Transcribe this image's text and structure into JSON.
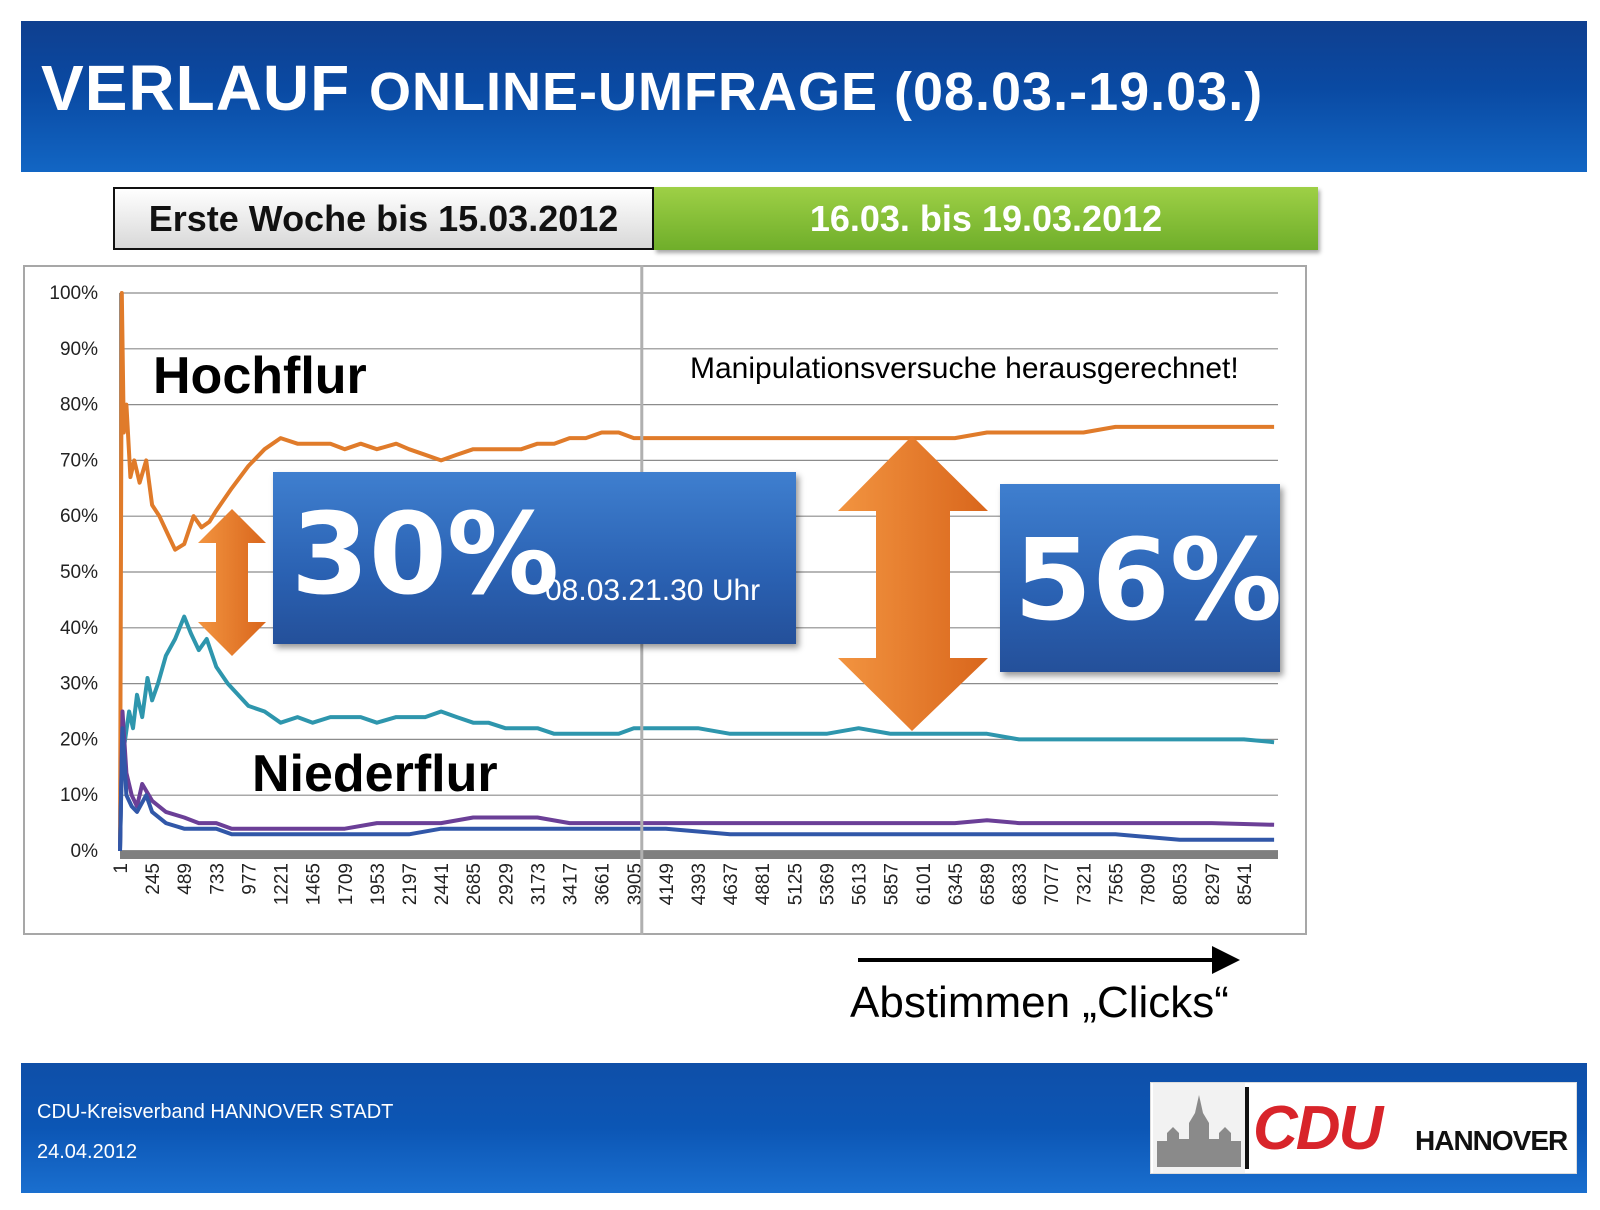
{
  "header": {
    "title_word1": "VERLAUF",
    "title_word2": "ONLINE-UMFRAGE (08.03.-19.03.)"
  },
  "tabs": {
    "first_week": "Erste Woche bis 15.03.2012",
    "second_period": "16.03. bis 19.03.2012"
  },
  "annotations": {
    "hochflur": "Hochflur",
    "niederflur": "Niederflur",
    "manipulation_note": "Manipulationsversuche herausgerechnet!",
    "gap_first": "30%",
    "gap_first_time": "08.03.21.30 Uhr",
    "gap_second": "56%",
    "x_axis_caption": "Abstimmen „Clicks“"
  },
  "footer": {
    "org": "CDU-Kreisverband HANNOVER STADT",
    "date": "24.04.2012"
  },
  "logo": {
    "brand": "CDU",
    "city": "HANNOVER"
  },
  "colors": {
    "orange": "#e07b2a",
    "teal": "#2e96ad",
    "purple": "#6b3f97",
    "blue": "#3157a8",
    "arrow_orange": "#e8762a",
    "box_blue": "#2a61b2"
  },
  "chart_data": {
    "type": "line",
    "x_ticks": [
      "1",
      "245",
      "489",
      "733",
      "977",
      "1221",
      "1465",
      "1709",
      "1953",
      "2197",
      "2441",
      "2685",
      "2929",
      "3173",
      "3417",
      "3661",
      "3905",
      "4149",
      "4393",
      "4637",
      "4881",
      "5125",
      "5369",
      "5613",
      "5857",
      "6101",
      "6345",
      "6589",
      "6833",
      "7077",
      "7321",
      "7565",
      "7809",
      "8053",
      "8297",
      "8541"
    ],
    "y_ticks": [
      "0%",
      "10%",
      "20%",
      "30%",
      "40%",
      "50%",
      "60%",
      "70%",
      "80%",
      "90%",
      "100%"
    ],
    "ylim": [
      0,
      100
    ],
    "xlim": [
      1,
      8800
    ],
    "divider_x": 3905,
    "series": [
      {
        "name": "Hochflur",
        "color_key": "orange",
        "points": [
          [
            1,
            0
          ],
          [
            15,
            100
          ],
          [
            30,
            75
          ],
          [
            50,
            80
          ],
          [
            80,
            67
          ],
          [
            110,
            70
          ],
          [
            150,
            66
          ],
          [
            200,
            70
          ],
          [
            245,
            62
          ],
          [
            300,
            60
          ],
          [
            360,
            57
          ],
          [
            420,
            54
          ],
          [
            489,
            55
          ],
          [
            560,
            60
          ],
          [
            620,
            58
          ],
          [
            680,
            59
          ],
          [
            733,
            61
          ],
          [
            850,
            65
          ],
          [
            977,
            69
          ],
          [
            1100,
            72
          ],
          [
            1221,
            74
          ],
          [
            1350,
            73
          ],
          [
            1465,
            73
          ],
          [
            1600,
            73
          ],
          [
            1709,
            72
          ],
          [
            1830,
            73
          ],
          [
            1953,
            72
          ],
          [
            2100,
            73
          ],
          [
            2197,
            72
          ],
          [
            2320,
            71
          ],
          [
            2441,
            70
          ],
          [
            2560,
            71
          ],
          [
            2685,
            72
          ],
          [
            2800,
            72
          ],
          [
            2929,
            72
          ],
          [
            3050,
            72
          ],
          [
            3173,
            73
          ],
          [
            3300,
            73
          ],
          [
            3417,
            74
          ],
          [
            3540,
            74
          ],
          [
            3661,
            75
          ],
          [
            3790,
            75
          ],
          [
            3905,
            74
          ],
          [
            4149,
            74
          ],
          [
            4393,
            74
          ],
          [
            4637,
            74
          ],
          [
            4881,
            74
          ],
          [
            5125,
            74
          ],
          [
            5369,
            74
          ],
          [
            5613,
            74
          ],
          [
            5857,
            74
          ],
          [
            6101,
            74
          ],
          [
            6345,
            74
          ],
          [
            6589,
            75
          ],
          [
            6833,
            75
          ],
          [
            7077,
            75
          ],
          [
            7321,
            75
          ],
          [
            7565,
            76
          ],
          [
            7809,
            76
          ],
          [
            8053,
            76
          ],
          [
            8297,
            76
          ],
          [
            8541,
            76
          ],
          [
            8770,
            76
          ]
        ]
      },
      {
        "name": "Niederflur",
        "color_key": "teal",
        "points": [
          [
            1,
            0
          ],
          [
            15,
            16
          ],
          [
            40,
            20
          ],
          [
            70,
            25
          ],
          [
            100,
            22
          ],
          [
            130,
            28
          ],
          [
            170,
            24
          ],
          [
            210,
            31
          ],
          [
            245,
            27
          ],
          [
            290,
            30
          ],
          [
            350,
            35
          ],
          [
            420,
            38
          ],
          [
            489,
            42
          ],
          [
            540,
            39
          ],
          [
            600,
            36
          ],
          [
            660,
            38
          ],
          [
            733,
            33
          ],
          [
            820,
            30
          ],
          [
            977,
            26
          ],
          [
            1100,
            25
          ],
          [
            1221,
            23
          ],
          [
            1350,
            24
          ],
          [
            1465,
            23
          ],
          [
            1600,
            24
          ],
          [
            1709,
            24
          ],
          [
            1830,
            24
          ],
          [
            1953,
            23
          ],
          [
            2100,
            24
          ],
          [
            2197,
            24
          ],
          [
            2320,
            24
          ],
          [
            2441,
            25
          ],
          [
            2560,
            24
          ],
          [
            2685,
            23
          ],
          [
            2800,
            23
          ],
          [
            2929,
            22
          ],
          [
            3050,
            22
          ],
          [
            3173,
            22
          ],
          [
            3300,
            21
          ],
          [
            3417,
            21
          ],
          [
            3540,
            21
          ],
          [
            3661,
            21
          ],
          [
            3790,
            21
          ],
          [
            3905,
            22
          ],
          [
            4149,
            22
          ],
          [
            4393,
            22
          ],
          [
            4637,
            21
          ],
          [
            4881,
            21
          ],
          [
            5125,
            21
          ],
          [
            5369,
            21
          ],
          [
            5613,
            22
          ],
          [
            5857,
            21
          ],
          [
            6101,
            21
          ],
          [
            6345,
            21
          ],
          [
            6589,
            21
          ],
          [
            6833,
            20
          ],
          [
            7077,
            20
          ],
          [
            7321,
            20
          ],
          [
            7565,
            20
          ],
          [
            7809,
            20
          ],
          [
            8053,
            20
          ],
          [
            8297,
            20
          ],
          [
            8541,
            20
          ],
          [
            8770,
            19.5
          ]
        ]
      },
      {
        "name": "Purple",
        "color_key": "purple",
        "points": [
          [
            1,
            0
          ],
          [
            20,
            25
          ],
          [
            50,
            14
          ],
          [
            90,
            10
          ],
          [
            130,
            8
          ],
          [
            170,
            12
          ],
          [
            245,
            9
          ],
          [
            350,
            7
          ],
          [
            489,
            6
          ],
          [
            600,
            5
          ],
          [
            733,
            5
          ],
          [
            850,
            4
          ],
          [
            977,
            4
          ],
          [
            1221,
            4
          ],
          [
            1465,
            4
          ],
          [
            1709,
            4
          ],
          [
            1953,
            5
          ],
          [
            2197,
            5
          ],
          [
            2441,
            5
          ],
          [
            2685,
            6
          ],
          [
            2929,
            6
          ],
          [
            3173,
            6
          ],
          [
            3417,
            5
          ],
          [
            3661,
            5
          ],
          [
            3905,
            5
          ],
          [
            4149,
            5
          ],
          [
            4637,
            5
          ],
          [
            5125,
            5
          ],
          [
            5613,
            5
          ],
          [
            5857,
            5
          ],
          [
            6101,
            5
          ],
          [
            6345,
            5
          ],
          [
            6589,
            5.5
          ],
          [
            6833,
            5
          ],
          [
            7321,
            5
          ],
          [
            7809,
            5
          ],
          [
            8297,
            5
          ],
          [
            8770,
            4.7
          ]
        ]
      },
      {
        "name": "Blue",
        "color_key": "blue",
        "points": [
          [
            1,
            0
          ],
          [
            20,
            22
          ],
          [
            50,
            10
          ],
          [
            90,
            8
          ],
          [
            130,
            7
          ],
          [
            200,
            10
          ],
          [
            245,
            7
          ],
          [
            350,
            5
          ],
          [
            489,
            4
          ],
          [
            600,
            4
          ],
          [
            733,
            4
          ],
          [
            850,
            3
          ],
          [
            977,
            3
          ],
          [
            1221,
            3
          ],
          [
            1465,
            3
          ],
          [
            1709,
            3
          ],
          [
            1953,
            3
          ],
          [
            2197,
            3
          ],
          [
            2441,
            4
          ],
          [
            2685,
            4
          ],
          [
            2929,
            4
          ],
          [
            3173,
            4
          ],
          [
            3417,
            4
          ],
          [
            3661,
            4
          ],
          [
            3905,
            4
          ],
          [
            4149,
            4
          ],
          [
            4637,
            3
          ],
          [
            5125,
            3
          ],
          [
            5613,
            3
          ],
          [
            6101,
            3
          ],
          [
            6589,
            3
          ],
          [
            7077,
            3
          ],
          [
            7565,
            3
          ],
          [
            8053,
            2
          ],
          [
            8541,
            2
          ],
          [
            8770,
            2
          ]
        ]
      }
    ]
  }
}
